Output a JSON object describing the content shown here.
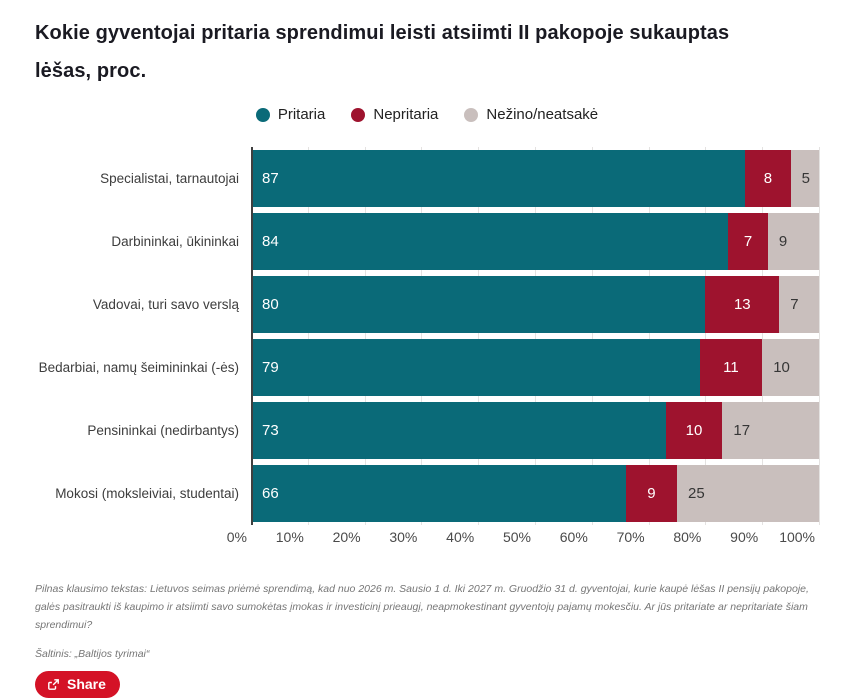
{
  "title": "Kokie gyventojai pritaria sprendimui leisti atsiimti II pakopoje sukauptas lėšas, proc.",
  "colors": {
    "approve": "#0a6a78",
    "disapprove": "#9e132e",
    "unknown": "#c9bfbd",
    "share_button": "#d41226",
    "axis_line": "#3f3f3f",
    "gridline": "#e4e2e1"
  },
  "chart_data": {
    "type": "bar",
    "orientation": "horizontal",
    "stacked": true,
    "grid": true,
    "legend_position": "top-center",
    "categories": [
      "Specialistai, tarnautojai",
      "Darbininkai, ūkininkai",
      "Vadovai, turi savo verslą",
      "Bedarbiai, namų šeimininkai (-ės)",
      "Pensininkai (nedirbantys)",
      "Mokosi (moksleiviai, studentai)"
    ],
    "series": [
      {
        "name": "Pritaria",
        "color": "#0a6a78",
        "values": [
          87,
          84,
          80,
          79,
          73,
          66
        ]
      },
      {
        "name": "Nepritaria",
        "color": "#9e132e",
        "values": [
          8,
          7,
          13,
          11,
          10,
          9
        ]
      },
      {
        "name": "Nežino/neatsakė",
        "color": "#c9bfbd",
        "values": [
          5,
          9,
          7,
          10,
          17,
          25
        ]
      }
    ],
    "x_axis": {
      "min": 0,
      "max": 100,
      "tick_step": 10,
      "ticks": [
        "0%",
        "10%",
        "20%",
        "30%",
        "40%",
        "50%",
        "60%",
        "70%",
        "80%",
        "90%",
        "100%"
      ]
    }
  },
  "footnote": {
    "text": "Pilnas klausimo tekstas: Lietuvos seimas priėmė sprendimą, kad nuo 2026 m. Sausio 1 d. Iki 2027 m. Gruodžio 31 d. gyventojai, kurie kaupė lėšas II pensijų pakopoje, galės pasitraukti iš kaupimo ir atsiimti savo sumokėtas įmokas ir investicinį prieaugį, neapmokestinant gyventojų pajamų mokesčiu. Ar jūs pritariate ar nepritariate šiam sprendimui?"
  },
  "source": {
    "text": "Šaltinis: „Baltijos tyrimai“"
  },
  "share": {
    "label": "Share",
    "icon": "share-export-icon"
  }
}
